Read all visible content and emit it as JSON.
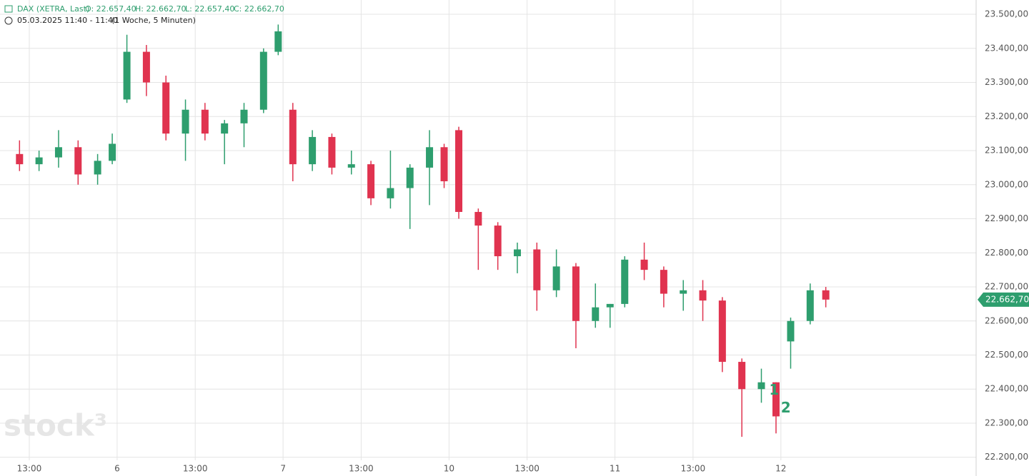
{
  "header": {
    "instrument": "DAX (XETRA, Last)",
    "open": "O: 22.657,40",
    "high": "H: 22.662,70",
    "low": "L: 22.657,40",
    "close": "C: 22.662,70",
    "time": "05.03.2025 11:40 - 11:40",
    "period": "(1 Woche, 5 Minuten)"
  },
  "watermark": "stock³",
  "chart_data": {
    "type": "candlestick",
    "x": [
      3.5,
      4.5,
      5.5,
      6.5,
      7.5,
      8.25,
      9,
      10,
      11,
      12,
      13,
      14,
      15,
      16,
      16.75,
      17.5,
      18.5,
      19.5,
      20.5,
      21.5,
      22.5,
      23.5,
      24.5,
      25.25,
      26,
      27,
      28,
      29,
      30,
      31,
      32,
      33,
      33.75,
      34.5,
      35.5,
      36.5,
      37.5,
      38.5,
      39.5,
      40.5,
      41.5,
      42.25,
      43,
      44,
      44.8
    ],
    "open": [
      23090,
      23060,
      23080,
      23110,
      23030,
      23070,
      23250,
      23390,
      23300,
      23150,
      23220,
      23150,
      23180,
      23220,
      23390,
      23220,
      23060,
      23140,
      23050,
      23060,
      22960,
      22990,
      23050,
      23110,
      23160,
      22920,
      22880,
      22790,
      22810,
      22690,
      22760,
      22600,
      22640,
      22650,
      22780,
      22750,
      22680,
      22690,
      22660,
      22480,
      22400,
      22420,
      22540,
      22600,
      22690
    ],
    "high": [
      23130,
      23100,
      23160,
      23130,
      23090,
      23150,
      23440,
      23410,
      23320,
      23250,
      23240,
      23190,
      23240,
      23400,
      23470,
      23240,
      23160,
      23150,
      23100,
      23070,
      23100,
      23060,
      23160,
      23120,
      23170,
      22930,
      22890,
      22830,
      22830,
      22810,
      22770,
      22710,
      22650,
      22790,
      22830,
      22760,
      22720,
      22720,
      22670,
      22490,
      22460,
      22420,
      22610,
      22710,
      22700
    ],
    "low": [
      23040,
      23040,
      23050,
      23000,
      23000,
      23060,
      23240,
      23260,
      23130,
      23070,
      23130,
      23060,
      23110,
      23210,
      23380,
      23010,
      23040,
      23030,
      23030,
      22940,
      22930,
      22870,
      22940,
      22990,
      22900,
      22750,
      22750,
      22740,
      22630,
      22670,
      22520,
      22580,
      22580,
      22640,
      22720,
      22640,
      22630,
      22600,
      22450,
      22260,
      22360,
      22270,
      22460,
      22590,
      22640
    ],
    "close": [
      23060,
      23080,
      23110,
      23030,
      23070,
      23120,
      23390,
      23300,
      23150,
      23220,
      23150,
      23180,
      23220,
      23390,
      23450,
      23060,
      23140,
      23050,
      23060,
      22960,
      22990,
      23050,
      23110,
      23010,
      22920,
      22880,
      22790,
      22810,
      22690,
      22760,
      22600,
      22640,
      22650,
      22780,
      22750,
      22680,
      22690,
      22660,
      22480,
      22400,
      22420,
      22320,
      22600,
      22690,
      22662.7
    ],
    "up_color": "#2e9e6e",
    "down_color": "#e0334f",
    "xlim": [
      2.5,
      52.5
    ],
    "xticks": [
      {
        "value": 4,
        "label": "13:00"
      },
      {
        "value": 8.5,
        "label": "6"
      },
      {
        "value": 12.5,
        "label": "13:00"
      },
      {
        "value": 17,
        "label": "7"
      },
      {
        "value": 21,
        "label": "13:00"
      },
      {
        "value": 25.5,
        "label": "10"
      },
      {
        "value": 29.5,
        "label": "13:00"
      },
      {
        "value": 34,
        "label": "11"
      },
      {
        "value": 38,
        "label": "13:00"
      },
      {
        "value": 42.5,
        "label": "12"
      }
    ],
    "ylim": [
      22145,
      23542
    ],
    "yticks": [
      {
        "value": 22200,
        "label": "22.200,00"
      },
      {
        "value": 22300,
        "label": "22.300,00"
      },
      {
        "value": 22400,
        "label": "22.400,00"
      },
      {
        "value": 22500,
        "label": "22.500,00"
      },
      {
        "value": 22600,
        "label": "22.600,00"
      },
      {
        "value": 22700,
        "label": "22.700,00"
      },
      {
        "value": 22800,
        "label": "22.800,00"
      },
      {
        "value": 22900,
        "label": "22.900,00"
      },
      {
        "value": 23000,
        "label": "23.000,00"
      },
      {
        "value": 23100,
        "label": "23.100,00"
      },
      {
        "value": 23200,
        "label": "23.200,00"
      },
      {
        "value": 23300,
        "label": "23.300,00"
      },
      {
        "value": 23400,
        "label": "23.400,00"
      },
      {
        "value": 23500,
        "label": "23.500,00"
      }
    ],
    "grid": true,
    "last_price": {
      "value": 22662.7,
      "label": "22.662,70"
    },
    "annotations": [
      {
        "text": "1",
        "x": 41.9,
        "y": 22395
      },
      {
        "text": "2",
        "x": 42.5,
        "y": 22343
      }
    ]
  }
}
